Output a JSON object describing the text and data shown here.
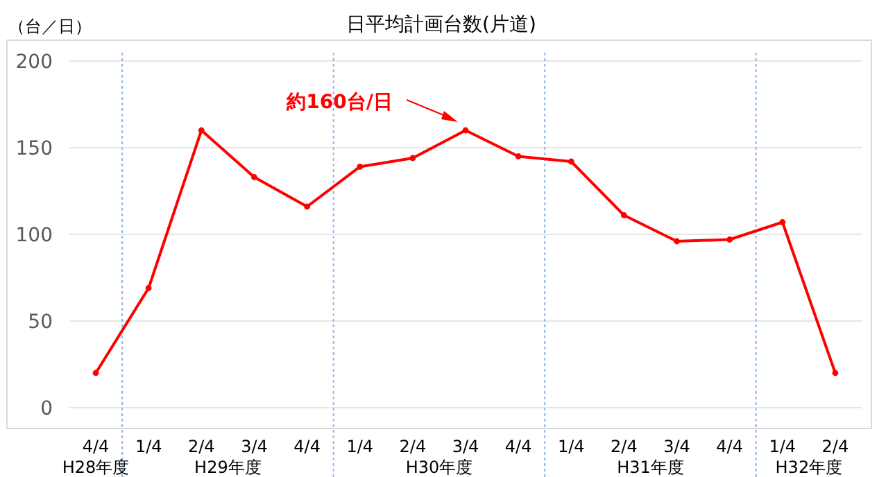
{
  "chart_data": {
    "type": "line",
    "title": "日平均計画台数(片道)",
    "ylabel": "（台／日）",
    "categories": [
      "4/4",
      "1/4",
      "2/4",
      "3/4",
      "4/4",
      "1/4",
      "2/4",
      "3/4",
      "4/4",
      "1/4",
      "2/4",
      "3/4",
      "4/4",
      "1/4",
      "2/4"
    ],
    "series": [
      {
        "color": "#ff0000",
        "values": [
          20,
          69,
          160,
          133,
          116,
          139,
          144,
          160,
          145,
          142,
          111,
          96,
          97,
          107,
          20
        ]
      }
    ],
    "ylim": [
      0,
      200
    ],
    "yticks": [
      0,
      50,
      100,
      150,
      200
    ],
    "grid": "y",
    "marker": "circle",
    "line_style": "solid",
    "annotations": [
      "約160台/日",
      "H28年度",
      "H29年度",
      "H30年度",
      "H31年度",
      "H32年度"
    ]
  }
}
